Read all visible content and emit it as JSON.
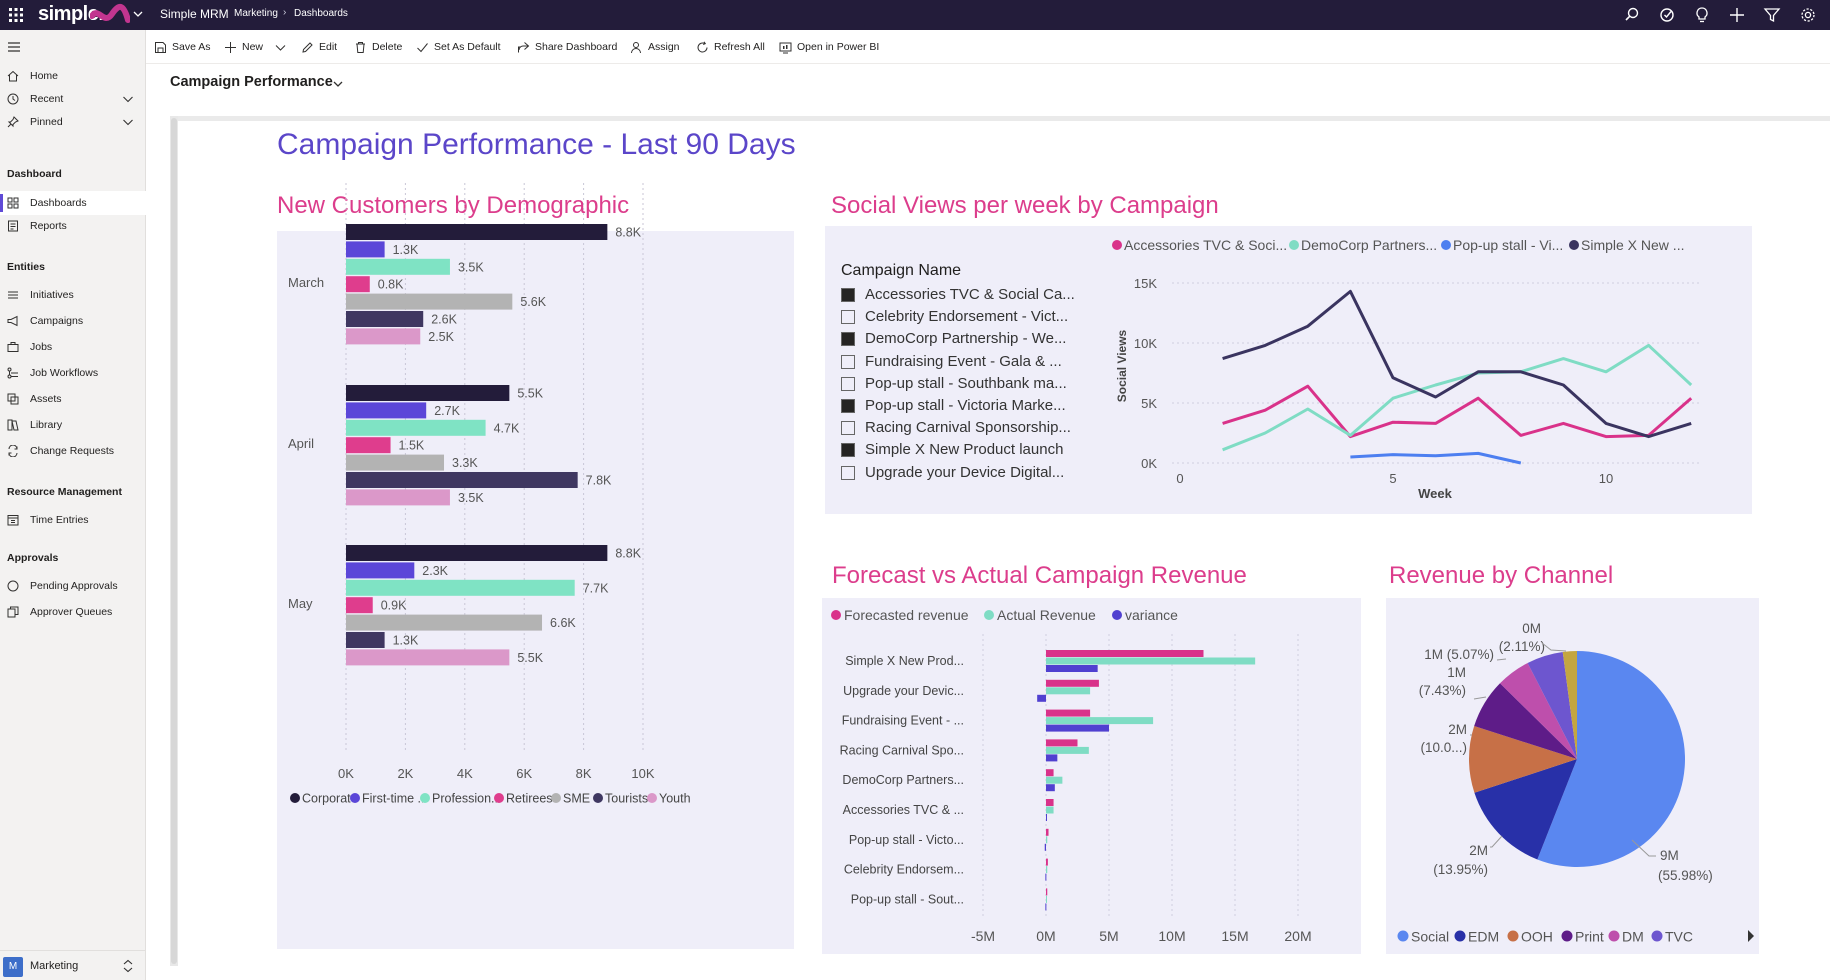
{
  "topbar": {
    "logo": "simple.",
    "app_name": "Simple MRM",
    "breadcrumb": [
      "Marketing",
      "Dashboards"
    ]
  },
  "sidebar": {
    "items": [
      {
        "label": "Home",
        "icon": "home-icon"
      },
      {
        "label": "Recent",
        "icon": "clock-icon",
        "expandable": true
      },
      {
        "label": "Pinned",
        "icon": "pin-icon",
        "expandable": true
      }
    ],
    "sections": [
      {
        "title": "Dashboard",
        "items": [
          {
            "label": "Dashboards",
            "icon": "dashboard-icon",
            "active": true
          },
          {
            "label": "Reports",
            "icon": "reports-icon"
          }
        ]
      },
      {
        "title": "Entities",
        "items": [
          {
            "label": "Initiatives",
            "icon": "initiatives-icon"
          },
          {
            "label": "Campaigns",
            "icon": "megaphone-icon"
          },
          {
            "label": "Jobs",
            "icon": "briefcase-icon"
          },
          {
            "label": "Job Workflows",
            "icon": "workflow-icon"
          },
          {
            "label": "Assets",
            "icon": "assets-icon"
          },
          {
            "label": "Library",
            "icon": "library-icon"
          },
          {
            "label": "Change Requests",
            "icon": "change-requests-icon"
          }
        ]
      },
      {
        "title": "Resource Management",
        "items": [
          {
            "label": "Time Entries",
            "icon": "time-entries-icon"
          }
        ]
      },
      {
        "title": "Approvals",
        "items": [
          {
            "label": "Pending Approvals",
            "icon": "pending-icon"
          },
          {
            "label": "Approver Queues",
            "icon": "queues-icon"
          }
        ]
      }
    ],
    "area": {
      "avatar": "M",
      "label": "Marketing"
    }
  },
  "commands": [
    {
      "label": "Save As",
      "icon": "save-as-icon"
    },
    {
      "label": "New",
      "icon": "plus-icon",
      "dropdown": true
    },
    {
      "label": "Edit",
      "icon": "edit-icon"
    },
    {
      "label": "Delete",
      "icon": "delete-icon"
    },
    {
      "label": "Set As Default",
      "icon": "check-icon"
    },
    {
      "label": "Share Dashboard",
      "icon": "share-icon"
    },
    {
      "label": "Assign",
      "icon": "assign-icon"
    },
    {
      "label": "Refresh All",
      "icon": "refresh-icon"
    },
    {
      "label": "Open in Power BI",
      "icon": "powerbi-icon"
    }
  ],
  "dashboard": {
    "selector": "Campaign Performance",
    "report_title": "Campaign Performance - Last 90 Days"
  },
  "colors": {
    "accent": "#5b46c9",
    "title_pink": "#dc3d8c",
    "topbar": "#231c3a",
    "panel": "#efeef9"
  },
  "chart_data": [
    {
      "id": "demographic",
      "type": "bar",
      "orientation": "horizontal",
      "title": "New Customers by Demographic",
      "categories": [
        "March",
        "April",
        "May"
      ],
      "series": [
        {
          "name": "Corporate",
          "color": "#231c3a",
          "values": [
            8.8,
            5.5,
            8.8
          ],
          "labels": [
            "8.8K",
            "5.5K",
            "8.8K"
          ]
        },
        {
          "name": "First-time ...",
          "color": "#5b46d8",
          "values": [
            1.3,
            2.7,
            2.3
          ],
          "labels": [
            "1.3K",
            "2.7K",
            "2.3K"
          ]
        },
        {
          "name": "Profession...",
          "color": "#7fe3c4",
          "values": [
            3.5,
            4.7,
            7.7
          ],
          "labels": [
            "3.5K",
            "4.7K",
            "7.7K"
          ]
        },
        {
          "name": "Retirees",
          "color": "#df3d8d",
          "values": [
            0.8,
            1.5,
            0.9
          ],
          "labels": [
            "0.8K",
            "1.5K",
            "0.9K"
          ]
        },
        {
          "name": "SME",
          "color": "#b3b3b3",
          "values": [
            5.6,
            3.3,
            6.6
          ],
          "labels": [
            "5.6K",
            "3.3K",
            "6.6K"
          ]
        },
        {
          "name": "Tourists",
          "color": "#3f3761",
          "values": [
            2.6,
            7.8,
            1.3
          ],
          "labels": [
            "2.6K",
            "7.8K",
            "1.3K"
          ]
        },
        {
          "name": "Youth",
          "color": "#db98c9",
          "values": [
            2.5,
            3.5,
            5.5
          ],
          "labels": [
            "2.5K",
            "3.5K",
            "5.5K"
          ]
        }
      ],
      "xlim": [
        0,
        10
      ],
      "xticks": [
        "0K",
        "2K",
        "4K",
        "6K",
        "8K",
        "10K"
      ],
      "legend": "bottom"
    },
    {
      "id": "social",
      "type": "line",
      "title": "Social Views per week by Campaign",
      "xlabel": "Week",
      "ylabel": "Social Views",
      "xlim": [
        0,
        12
      ],
      "ylim": [
        0,
        15000
      ],
      "xticks": [
        "0",
        "5",
        "10"
      ],
      "yticks": [
        "0K",
        "5K",
        "10K",
        "15K"
      ],
      "series": [
        {
          "name": "Accessories TVC & Soci...",
          "color": "#d9328a",
          "points": [
            [
              1,
              3300
            ],
            [
              2,
              4400
            ],
            [
              3,
              6400
            ],
            [
              4,
              2200
            ],
            [
              5,
              3400
            ],
            [
              6,
              3300
            ],
            [
              7,
              5400
            ],
            [
              8,
              2300
            ],
            [
              9,
              3300
            ],
            [
              10,
              2200
            ],
            [
              11,
              2300
            ],
            [
              12,
              5400
            ]
          ]
        },
        {
          "name": "DemoCorp Partners...",
          "color": "#7fdcc4",
          "points": [
            [
              1,
              1100
            ],
            [
              2,
              2500
            ],
            [
              3,
              4500
            ],
            [
              4,
              2300
            ],
            [
              5,
              5400
            ],
            [
              6,
              6500
            ],
            [
              7,
              7500
            ],
            [
              8,
              7600
            ],
            [
              9,
              8700
            ],
            [
              10,
              7600
            ],
            [
              11,
              9800
            ],
            [
              12,
              6500
            ]
          ]
        },
        {
          "name": "Pop-up stall - Vi...",
          "color": "#4d7ff0",
          "points": [
            [
              4,
              500
            ],
            [
              5,
              700
            ],
            [
              6,
              600
            ],
            [
              7,
              800
            ],
            [
              8,
              0
            ]
          ]
        },
        {
          "name": "Simple X New ...",
          "color": "#3a3460",
          "points": [
            [
              1,
              8700
            ],
            [
              2,
              9800
            ],
            [
              3,
              11400
            ],
            [
              4,
              14300
            ],
            [
              5,
              7100
            ],
            [
              6,
              5500
            ],
            [
              7,
              7600
            ],
            [
              8,
              7600
            ],
            [
              9,
              6500
            ],
            [
              10,
              3300
            ],
            [
              11,
              2200
            ],
            [
              12,
              3300
            ]
          ]
        }
      ],
      "legend": "top",
      "slicer": {
        "title": "Campaign Name",
        "items": [
          {
            "label": "Accessories TVC & Social Ca...",
            "checked": true
          },
          {
            "label": "Celebrity Endorsement - Vict...",
            "checked": false
          },
          {
            "label": "DemoCorp Partnership - We...",
            "checked": true
          },
          {
            "label": "Fundraising Event - Gala & ...",
            "checked": false
          },
          {
            "label": "Pop-up stall - Southbank ma...",
            "checked": false
          },
          {
            "label": "Pop-up stall - Victoria Marke...",
            "checked": true
          },
          {
            "label": "Racing Carnival Sponsorship...",
            "checked": false
          },
          {
            "label": "Simple X New Product launch",
            "checked": true
          },
          {
            "label": "Upgrade your Device Digital...",
            "checked": false
          }
        ]
      }
    },
    {
      "id": "forecast",
      "type": "bar",
      "orientation": "horizontal",
      "title": "Forecast vs Actual Campaign Revenue",
      "categories": [
        "Simple X New Prod...",
        "Upgrade your Devic...",
        "Fundraising Event - ...",
        "Racing Carnival Spo...",
        "DemoCorp Partners...",
        "Accessories TVC & ...",
        "Pop-up stall - Victo...",
        "Celebrity Endorsem...",
        "Pop-up stall - Sout..."
      ],
      "series": [
        {
          "name": "Forecasted revenue",
          "color": "#d9328a",
          "values": [
            12.5,
            4.2,
            3.5,
            2.5,
            0.6,
            0.6,
            0.2,
            0.15,
            0.1
          ]
        },
        {
          "name": "Actual Revenue",
          "color": "#7fdcc4",
          "values": [
            16.6,
            3.5,
            8.5,
            3.4,
            1.3,
            0.6,
            0.1,
            0.1,
            0.05
          ]
        },
        {
          "name": "variance",
          "color": "#5040d0",
          "values": [
            4.1,
            -0.7,
            5.0,
            0.9,
            0.7,
            0.05,
            -0.1,
            -0.05,
            -0.05
          ]
        }
      ],
      "xlim": [
        -5,
        20
      ],
      "xticks": [
        "-5M",
        "0M",
        "5M",
        "10M",
        "15M",
        "20M"
      ],
      "legend": "top"
    },
    {
      "id": "channel",
      "type": "pie",
      "title": "Revenue by Channel",
      "slices": [
        {
          "name": "Social",
          "color": "#5a87f0",
          "value": 55.98,
          "label": [
            "9M",
            "(55.98%)"
          ]
        },
        {
          "name": "EDM",
          "color": "#2830a8",
          "value": 13.95,
          "label": [
            "2M",
            "(13.95%)"
          ]
        },
        {
          "name": "OOH",
          "color": "#c77047",
          "value": 10.0,
          "label": [
            "2M",
            "(10.0...)"
          ]
        },
        {
          "name": "Print",
          "color": "#5e1c88",
          "value": 7.43,
          "label": [
            "1M",
            "(7.43%)"
          ]
        },
        {
          "name": "DM",
          "color": "#be4fac",
          "value": 5.07,
          "label": [
            "1M (5.07%)"
          ]
        },
        {
          "name": "TVC",
          "color": "#6d56cf",
          "value": 5.45,
          "label": []
        },
        {
          "name": "",
          "color": "#c4a640",
          "value": 2.11,
          "label": [
            "0M",
            "(2.11%)"
          ]
        }
      ],
      "legend": "bottom"
    }
  ]
}
